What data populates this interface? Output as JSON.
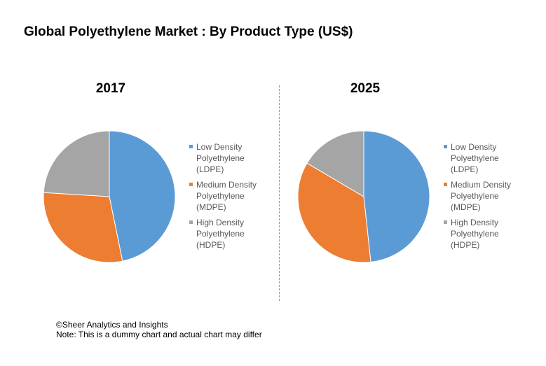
{
  "chart_data": [
    {
      "type": "pie",
      "title": "2017",
      "categories": [
        "Low Density\nPolyethylene\n(LDPE)",
        "Medium Density\nPolyethylene\n(MDPE)",
        "High Density\nPolyethylene\n(HDPE)"
      ],
      "values": [
        46.8,
        29.2,
        24.0
      ],
      "colors": [
        "#5b9bd5",
        "#ed7d31",
        "#a5a5a5"
      ],
      "legend": "right"
    },
    {
      "type": "pie",
      "title": "2025",
      "categories": [
        "Low Density\nPolyethylene\n(LDPE)",
        "Medium Density\nPolyethylene\n(MDPE)",
        "High Density\nPolyethylene\n(HDPE)"
      ],
      "values": [
        48.3,
        35.2,
        16.5
      ],
      "colors": [
        "#5b9bd5",
        "#ed7d31",
        "#a5a5a5"
      ],
      "legend": "right"
    }
  ],
  "page": {
    "title": "Global Polyethylene Market : By Product Type (US$)",
    "footer_line1": "©Sheer Analytics and Insights",
    "footer_line2": "Note: This is a dummy chart and actual chart may differ"
  }
}
